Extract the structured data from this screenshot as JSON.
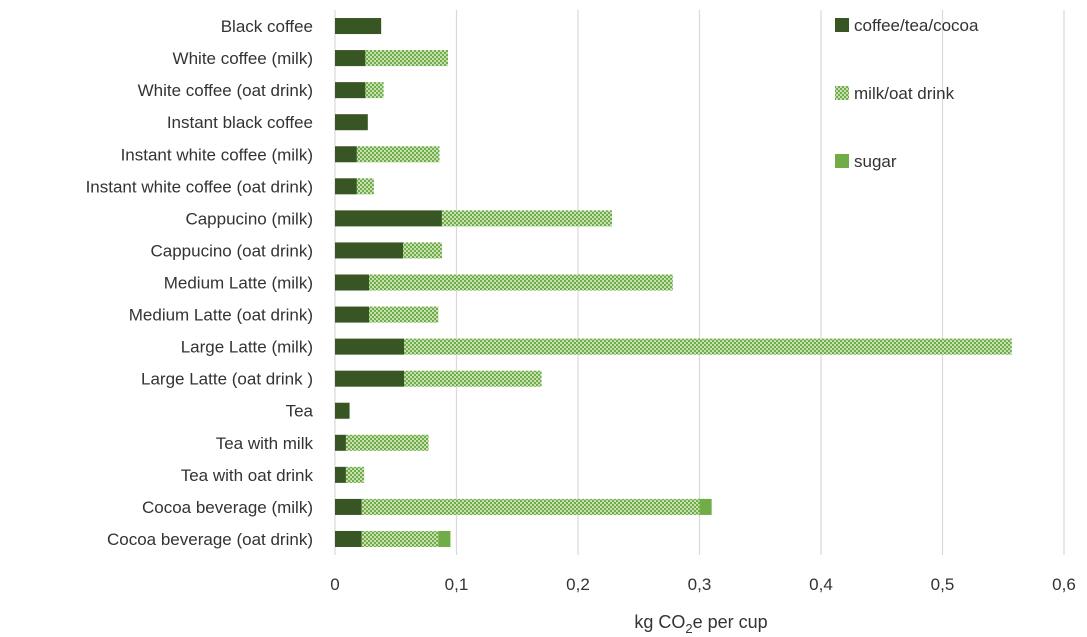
{
  "chart_data": {
    "type": "bar",
    "orientation": "horizontal",
    "stacked": true,
    "categories": [
      "Black coffee",
      "White coffee (milk)",
      "White coffee (oat drink)",
      "Instant black coffee",
      "Instant white coffee (milk)",
      "Instant white coffee (oat drink)",
      "Cappucino (milk)",
      "Cappucino (oat drink)",
      "Medium Latte (milk)",
      "Medium Latte (oat drink)",
      "Large Latte (milk)",
      "Large Latte (oat drink )",
      "Tea",
      "Tea with milk",
      "Tea with oat drink",
      "Cocoa beverage (milk)",
      "Cocoa beverage (oat drink)"
    ],
    "series": [
      {
        "name": "coffee/tea/cocoa",
        "color": "#375623",
        "pattern": "solid",
        "values": [
          0.038,
          0.025,
          0.025,
          0.027,
          0.018,
          0.018,
          0.088,
          0.056,
          0.028,
          0.028,
          0.057,
          0.057,
          0.012,
          0.009,
          0.009,
          0.022,
          0.022
        ]
      },
      {
        "name": "milk/oat drink",
        "color": "#70ad47",
        "pattern": "checker",
        "values": [
          0,
          0.068,
          0.015,
          0,
          0.068,
          0.014,
          0.14,
          0.032,
          0.25,
          0.057,
          0.5,
          0.113,
          0,
          0.068,
          0.015,
          0.278,
          0.063
        ]
      },
      {
        "name": "sugar",
        "color": "#70ad47",
        "pattern": "solid",
        "values": [
          0,
          0,
          0,
          0,
          0,
          0,
          0,
          0,
          0,
          0,
          0,
          0,
          0,
          0,
          0,
          0.01,
          0.01
        ]
      }
    ],
    "xlim": [
      0,
      0.6
    ],
    "xticks": [
      "0",
      "0,1",
      "0,2",
      "0,3",
      "0,4",
      "0,5",
      "0,6"
    ],
    "xlabel": "kg CO",
    "xlabel_sub": "2",
    "xlabel_tail": "e per cup",
    "grid": "vertical",
    "legend_position": "top-right"
  }
}
